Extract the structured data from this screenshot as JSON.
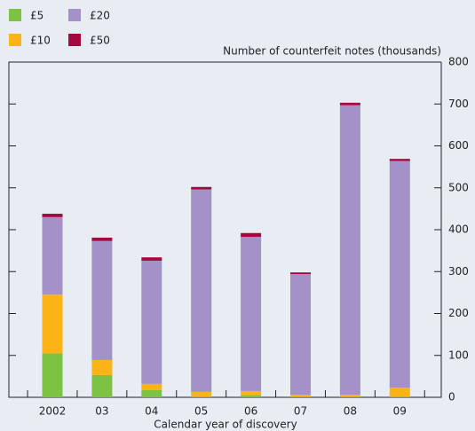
{
  "chart_data": {
    "type": "bar",
    "stacked": true,
    "y_axis_label": "Number of counterfeit notes (thousands)",
    "x_axis_label": "Calendar year of discovery",
    "categories": [
      "2002",
      "03",
      "04",
      "05",
      "06",
      "07",
      "08",
      "09"
    ],
    "series": [
      {
        "name": "£5",
        "color": "#7dc242",
        "values": [
          105,
          53,
          17,
          1,
          5,
          1,
          1,
          1
        ]
      },
      {
        "name": "£10",
        "color": "#fbb316",
        "values": [
          140,
          36,
          15,
          12,
          10,
          5,
          5,
          22
        ]
      },
      {
        "name": "£20",
        "color": "#a391c8",
        "values": [
          185,
          284,
          294,
          483,
          368,
          288,
          691,
          541
        ]
      },
      {
        "name": "£50",
        "color": "#a6093d",
        "values": [
          8,
          8,
          8,
          6,
          9,
          4,
          6,
          5
        ]
      }
    ],
    "ylim": [
      0,
      800
    ],
    "yticks": [
      0,
      100,
      200,
      300,
      400,
      500,
      600,
      700,
      800
    ],
    "grid": false
  }
}
